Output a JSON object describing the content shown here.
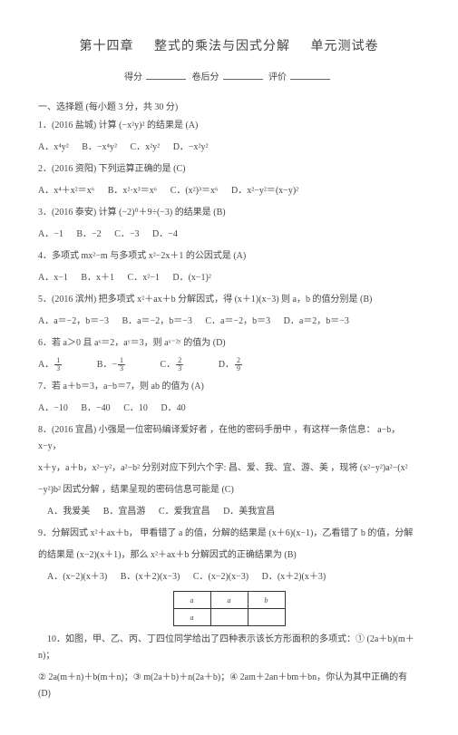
{
  "title": {
    "t1": "第十四章",
    "t2": "整式的乘法与因式分解",
    "t3": "单元测试卷"
  },
  "score": {
    "a": "得分",
    "b": "卷后分",
    "c": "评价"
  },
  "section1": "一、选择题 (每小题 3 分，共 30 分)",
  "q1": {
    "stem": "1．(2016 盐城) 计算 (−x²y)² 的结果是  (A)",
    "A": "A．x⁴y²",
    "B": "B．−x⁴y²",
    "C": "C．x²y²",
    "D": "D．−x²y²"
  },
  "q2": {
    "stem": "2．(2016 资阳) 下列运算正确的是  (C)",
    "A": "A．x⁴＋x²＝x⁶",
    "B": "B．x²·x³＝x⁶",
    "C": "C．(x²)³＝x⁶",
    "D": "D．x²−y²＝(x−y)²"
  },
  "q3": {
    "stem": "3．(2016 泰安) 计算 (−2)⁰＋9÷(−3) 的结果是  (B)",
    "A": "A．−1",
    "B": "B．−2",
    "C": "C．−3",
    "D": "D．−4"
  },
  "q4": {
    "stem": "4．多项式 mx²−m 与多项式 x²−2x＋1 的公因式是  (A)",
    "A": "A．x−1",
    "B": "B．x＋1",
    "C": "C．x²−1",
    "D": "D．(x−1)²"
  },
  "q5": {
    "stem": "5．(2016 滨州) 把多项式 x²＋ax＋b 分解因式，得 (x＋1)(x−3) 则 a，b 的值分别是  (B)",
    "A": "A．a＝−2，b＝−3",
    "B": "B．a＝−2，b＝−3",
    "C": "C．a＝−2，b＝3",
    "D": "D．a＝2，b＝−3"
  },
  "q6": {
    "stem": "6．若 a＞0 且 aˣ＝2，aʸ＝3，则 aˣ⁻²ʸ 的值为  (D)",
    "A": "1/3",
    "B": "−1/3",
    "C": "2/3",
    "D": "2/9"
  },
  "q7": {
    "stem": "7．若 a＋b＝3，a−b＝7，则 ab 的值为 (A)",
    "A": "A．−10",
    "B": "B．−40",
    "C": "C．10",
    "D": "D．40"
  },
  "q8": {
    "l1": "8．(2016 宜昌) 小强是一位密码编译爱好者 ，在他的密码手册中 ，有这样一条信息： a−b，x−y，",
    "l2": "x＋y，a＋b，x²−y²，a²−b² 分别对应下列六个字: 昌、爱、我、宜、游、美 ，现将 (x²−y²)a²−(x²",
    "l3": "−y²)b² 因式分解 ，结果呈现的密码信息可能是   (C)",
    "A": "A．我爱美",
    "B": "B．宜昌游",
    "C": "C．爱我宜昌",
    "D": "D．美我宜昌"
  },
  "q9": {
    "l1": "9．分解因式 x²＋ax＋b， 甲看错了 a 的值，分解的结果是 (x＋6)(x−1)，乙看错了 b 的值，分解",
    "l2": "的结果是 (x−2)(x＋1)，那么 x²＋ax＋b 分解因式的正确结果为   (B)",
    "A": "A．(x−2)(x＋3)",
    "B": "B．(x＋2)(x−3)",
    "C": "C．(x−2)(x−3)",
    "D": "D．(x＋2)(x＋3)"
  },
  "rect": {
    "r1c1": "a",
    "r1c2": "b",
    "leftTop": "a",
    "leftBot": "a"
  },
  "q10": {
    "l1": "10．如图，甲、乙、丙、丁四位同学给出了四种表示该长方形面积的多项式：①     (2a＋b)(m＋n)；",
    "l2": "② 2a(m＋n)＋b(m＋n)；③ m(2a＋b)＋n(2a＋b)；④ 2am＋2an＋bm＋bn，你认为其中正确的有   (D)"
  }
}
